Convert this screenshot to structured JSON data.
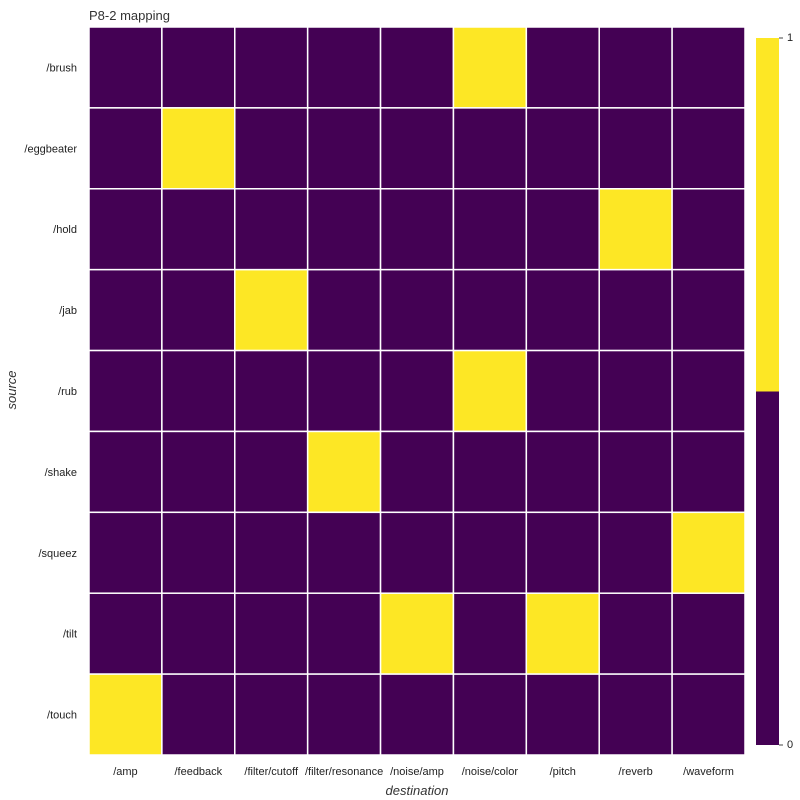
{
  "chart_data": {
    "type": "heatmap",
    "title": "P8-2 mapping",
    "xlabel": "destination",
    "ylabel": "source",
    "x_categories": [
      "/amp",
      "/feedback",
      "/filter/cutoff",
      "/filter/resonance",
      "/noise/amp",
      "/noise/color",
      "/pitch",
      "/reverb",
      "/waveform"
    ],
    "y_categories": [
      "/brush",
      "/eggbeater",
      "/hold",
      "/jab",
      "/rub",
      "/shake",
      "/squeez",
      "/tilt",
      "/touch"
    ],
    "values": [
      [
        0,
        0,
        0,
        0,
        0,
        1,
        0,
        0,
        0
      ],
      [
        0,
        1,
        0,
        0,
        0,
        0,
        0,
        0,
        0
      ],
      [
        0,
        0,
        0,
        0,
        0,
        0,
        0,
        1,
        0
      ],
      [
        0,
        0,
        1,
        0,
        0,
        0,
        0,
        0,
        0
      ],
      [
        0,
        0,
        0,
        0,
        0,
        1,
        0,
        0,
        0
      ],
      [
        0,
        0,
        0,
        1,
        0,
        0,
        0,
        0,
        0
      ],
      [
        0,
        0,
        0,
        0,
        0,
        0,
        0,
        0,
        1
      ],
      [
        0,
        0,
        0,
        0,
        1,
        0,
        1,
        0,
        0
      ],
      [
        1,
        0,
        0,
        0,
        0,
        0,
        0,
        0,
        0
      ]
    ],
    "value_range": [
      0,
      1
    ],
    "colors": {
      "low": "#440154",
      "high": "#fde725",
      "cell_border": "#ffffff"
    },
    "colorbar": {
      "min_label": "0",
      "max_label": "1"
    },
    "grid": false
  }
}
